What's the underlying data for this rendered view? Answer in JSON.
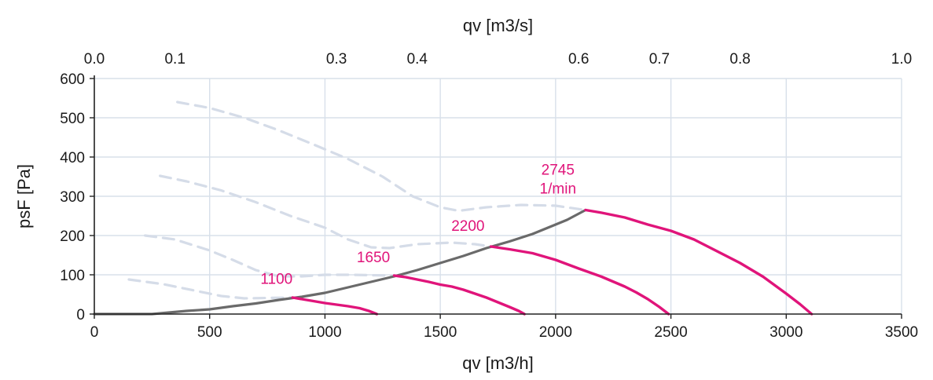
{
  "chart_data": {
    "type": "line",
    "xlabel": "qv [m3/h]",
    "x2label": "qv [m3/s]",
    "ylabel": "psF [Pa]",
    "xlim": [
      0,
      3500
    ],
    "ylim": [
      0,
      600
    ],
    "x2lim": [
      0.0,
      1.0
    ],
    "xticks": [
      "0",
      "500",
      "1000",
      "1500",
      "2000",
      "2500",
      "3000",
      "3500"
    ],
    "x2ticks": [
      "0.0",
      "0.1",
      "0.3",
      "0.4",
      "0.6",
      "0.7",
      "0.8",
      "1.0"
    ],
    "yticks": [
      "0",
      "100",
      "200",
      "300",
      "400",
      "500",
      "600"
    ],
    "grid": true,
    "colors": {
      "speed_curve": "#e0147a",
      "system_curve": "#6a6a6a",
      "stall_curve": "#d5dce8"
    },
    "series": [
      {
        "kind": "speed",
        "points": [
          [
            860,
            42
          ],
          [
            900,
            38
          ],
          [
            950,
            33
          ],
          [
            1000,
            28
          ],
          [
            1050,
            24
          ],
          [
            1100,
            20
          ],
          [
            1150,
            15
          ],
          [
            1190,
            8
          ],
          [
            1225,
            0
          ]
        ]
      },
      {
        "kind": "speed",
        "points": [
          [
            1300,
            98
          ],
          [
            1350,
            94
          ],
          [
            1400,
            88
          ],
          [
            1450,
            82
          ],
          [
            1500,
            75
          ],
          [
            1550,
            70
          ],
          [
            1600,
            62
          ],
          [
            1650,
            52
          ],
          [
            1700,
            42
          ],
          [
            1750,
            30
          ],
          [
            1800,
            18
          ],
          [
            1840,
            8
          ],
          [
            1865,
            0
          ]
        ]
      },
      {
        "kind": "speed",
        "points": [
          [
            1720,
            172
          ],
          [
            1800,
            165
          ],
          [
            1900,
            155
          ],
          [
            2000,
            138
          ],
          [
            2100,
            116
          ],
          [
            2200,
            95
          ],
          [
            2300,
            70
          ],
          [
            2350,
            55
          ],
          [
            2400,
            38
          ],
          [
            2450,
            18
          ],
          [
            2490,
            0
          ]
        ]
      },
      {
        "kind": "speed",
        "points": [
          [
            2130,
            265
          ],
          [
            2200,
            258
          ],
          [
            2300,
            246
          ],
          [
            2400,
            228
          ],
          [
            2500,
            212
          ],
          [
            2600,
            190
          ],
          [
            2700,
            160
          ],
          [
            2800,
            130
          ],
          [
            2900,
            95
          ],
          [
            3000,
            52
          ],
          [
            3060,
            25
          ],
          [
            3110,
            0
          ]
        ]
      },
      {
        "kind": "system",
        "points": [
          [
            0,
            0
          ],
          [
            250,
            0
          ],
          [
            400,
            8
          ],
          [
            500,
            12
          ],
          [
            600,
            20
          ],
          [
            700,
            27
          ],
          [
            800,
            36
          ],
          [
            900,
            44
          ],
          [
            1000,
            54
          ],
          [
            1100,
            68
          ],
          [
            1200,
            82
          ],
          [
            1300,
            96
          ],
          [
            1400,
            112
          ],
          [
            1500,
            130
          ],
          [
            1600,
            148
          ],
          [
            1700,
            168
          ],
          [
            1800,
            185
          ],
          [
            1900,
            204
          ],
          [
            2000,
            228
          ],
          [
            2050,
            240
          ],
          [
            2130,
            265
          ]
        ]
      },
      {
        "kind": "stall",
        "points": [
          [
            360,
            540
          ],
          [
            500,
            525
          ],
          [
            650,
            500
          ],
          [
            800,
            468
          ],
          [
            950,
            432
          ],
          [
            1100,
            395
          ],
          [
            1250,
            350
          ],
          [
            1380,
            300
          ],
          [
            1500,
            272
          ],
          [
            1580,
            263
          ],
          [
            1700,
            272
          ],
          [
            1850,
            278
          ],
          [
            2000,
            276
          ],
          [
            2130,
            265
          ]
        ]
      },
      {
        "kind": "stall",
        "points": [
          [
            285,
            352
          ],
          [
            400,
            338
          ],
          [
            550,
            315
          ],
          [
            700,
            285
          ],
          [
            850,
            250
          ],
          [
            1000,
            220
          ],
          [
            1100,
            190
          ],
          [
            1200,
            170
          ],
          [
            1280,
            168
          ],
          [
            1400,
            178
          ],
          [
            1550,
            182
          ],
          [
            1650,
            178
          ],
          [
            1720,
            172
          ]
        ]
      },
      {
        "kind": "stall",
        "points": [
          [
            220,
            200
          ],
          [
            350,
            190
          ],
          [
            500,
            162
          ],
          [
            600,
            138
          ],
          [
            700,
            112
          ],
          [
            800,
            96
          ],
          [
            900,
            96
          ],
          [
            1000,
            100
          ],
          [
            1100,
            100
          ],
          [
            1200,
            99
          ],
          [
            1300,
            98
          ]
        ]
      },
      {
        "kind": "stall",
        "points": [
          [
            150,
            88
          ],
          [
            300,
            76
          ],
          [
            450,
            58
          ],
          [
            550,
            46
          ],
          [
            650,
            40
          ],
          [
            750,
            41
          ],
          [
            860,
            42
          ]
        ]
      }
    ],
    "annotations": [
      {
        "text": "1100",
        "x": 790,
        "y": 77
      },
      {
        "text": "1650",
        "x": 1210,
        "y": 132
      },
      {
        "text": "2200",
        "x": 1620,
        "y": 212
      },
      {
        "text": "2745",
        "x": 2010,
        "y": 355
      },
      {
        "text": "1/min",
        "x": 2010,
        "y": 307
      }
    ]
  }
}
